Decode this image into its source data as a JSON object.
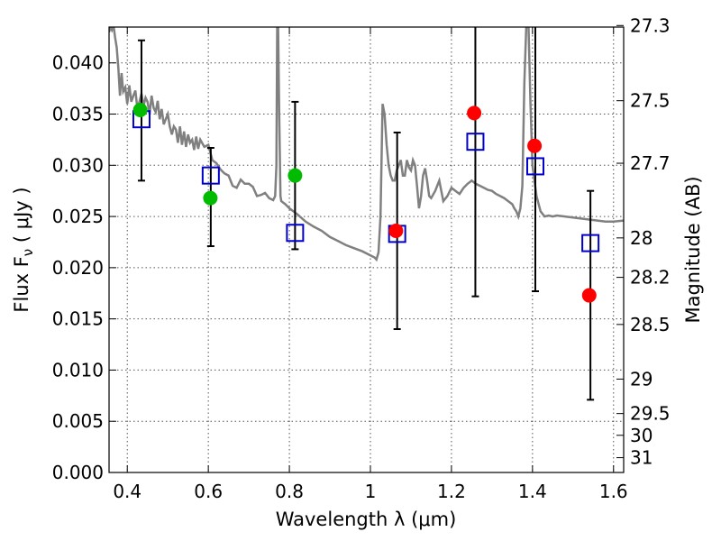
{
  "chart_data": {
    "type": "scatter",
    "xlabel": "Wavelength  λ (μm)",
    "ylabel": "Flux  F",
    "ylabel_sub": "ν",
    "ylabel_unit": "  ( μJy )",
    "y2label": "Magnitude (AB)",
    "xlim": [
      0.355,
      1.625
    ],
    "ylim": [
      0.0,
      0.0435
    ],
    "grid": true,
    "x_ticks": [
      0.4,
      0.6,
      0.8,
      1.0,
      1.2,
      1.4,
      1.6
    ],
    "x_tick_labels": [
      "0.4",
      "0.6",
      "0.8",
      "1",
      "1.2",
      "1.4",
      "1.6"
    ],
    "y_ticks": [
      0.0,
      0.005,
      0.01,
      0.015,
      0.02,
      0.025,
      0.03,
      0.035,
      0.04
    ],
    "y_tick_labels": [
      "0.000",
      "0.005",
      "0.010",
      "0.015",
      "0.020",
      "0.025",
      "0.030",
      "0.035",
      "0.040"
    ],
    "mag_ticks": [
      27.3,
      27.5,
      27.7,
      28,
      28.2,
      28.5,
      29,
      29.5,
      30,
      31
    ],
    "mag_tick_labels": [
      "27.3",
      "27.5",
      "27.7",
      "28",
      "28.2",
      "28.5",
      "29",
      "29.5",
      "30",
      "31"
    ],
    "colors": {
      "spectrum": "#808080",
      "green": "#00bb00",
      "red": "#ff0000",
      "model": "#0000cc",
      "errorbar": "#000000",
      "grid": "#555555"
    },
    "spectrum": {
      "x": [
        0.355,
        0.358,
        0.362,
        0.366,
        0.37,
        0.374,
        0.378,
        0.382,
        0.386,
        0.39,
        0.395,
        0.4,
        0.405,
        0.41,
        0.415,
        0.42,
        0.425,
        0.43,
        0.435,
        0.44,
        0.445,
        0.45,
        0.455,
        0.46,
        0.465,
        0.47,
        0.475,
        0.48,
        0.485,
        0.49,
        0.495,
        0.5,
        0.505,
        0.51,
        0.515,
        0.52,
        0.525,
        0.53,
        0.535,
        0.54,
        0.545,
        0.55,
        0.555,
        0.56,
        0.565,
        0.57,
        0.575,
        0.58,
        0.59,
        0.6,
        0.61,
        0.62,
        0.63,
        0.64,
        0.65,
        0.66,
        0.67,
        0.68,
        0.69,
        0.7,
        0.71,
        0.72,
        0.73,
        0.74,
        0.75,
        0.76,
        0.765,
        0.768,
        0.77,
        0.772,
        0.775,
        0.778,
        0.78,
        0.79,
        0.8,
        0.82,
        0.84,
        0.86,
        0.88,
        0.9,
        0.92,
        0.94,
        0.96,
        0.98,
        1.0,
        1.01,
        1.015,
        1.02,
        1.025,
        1.03,
        1.035,
        1.04,
        1.045,
        1.05,
        1.055,
        1.06,
        1.065,
        1.07,
        1.075,
        1.08,
        1.085,
        1.09,
        1.095,
        1.1,
        1.105,
        1.11,
        1.115,
        1.12,
        1.125,
        1.13,
        1.135,
        1.14,
        1.145,
        1.15,
        1.16,
        1.17,
        1.18,
        1.19,
        1.2,
        1.21,
        1.22,
        1.23,
        1.24,
        1.25,
        1.26,
        1.27,
        1.28,
        1.29,
        1.3,
        1.31,
        1.32,
        1.33,
        1.34,
        1.35,
        1.355,
        1.36,
        1.365,
        1.37,
        1.375,
        1.38,
        1.385,
        1.39,
        1.395,
        1.4,
        1.41,
        1.42,
        1.43,
        1.44,
        1.45,
        1.46,
        1.48,
        1.5,
        1.52,
        1.54,
        1.56,
        1.58,
        1.6,
        1.625
      ],
      "y": [
        0.043,
        0.0435,
        0.0432,
        0.0437,
        0.0425,
        0.0415,
        0.0395,
        0.0368,
        0.039,
        0.0372,
        0.0376,
        0.036,
        0.0378,
        0.0362,
        0.0368,
        0.0373,
        0.0355,
        0.0362,
        0.037,
        0.0358,
        0.0366,
        0.0362,
        0.035,
        0.0368,
        0.0356,
        0.0352,
        0.0363,
        0.0345,
        0.0355,
        0.034,
        0.0345,
        0.035,
        0.0338,
        0.033,
        0.0338,
        0.0335,
        0.0322,
        0.0338,
        0.032,
        0.0333,
        0.0318,
        0.033,
        0.0322,
        0.0325,
        0.0315,
        0.0328,
        0.0316,
        0.0325,
        0.0318,
        0.032,
        0.0305,
        0.0302,
        0.0296,
        0.0292,
        0.029,
        0.028,
        0.0278,
        0.0286,
        0.0282,
        0.0282,
        0.0279,
        0.027,
        0.0271,
        0.0273,
        0.0268,
        0.0266,
        0.027,
        0.03,
        0.044,
        0.044,
        0.035,
        0.027,
        0.0265,
        0.0262,
        0.0258,
        0.0252,
        0.0245,
        0.024,
        0.0236,
        0.023,
        0.0226,
        0.0222,
        0.0219,
        0.0216,
        0.0212,
        0.021,
        0.0208,
        0.0215,
        0.025,
        0.036,
        0.035,
        0.032,
        0.03,
        0.029,
        0.0285,
        0.0285,
        0.0295,
        0.03,
        0.0305,
        0.029,
        0.029,
        0.0305,
        0.0298,
        0.0295,
        0.0305,
        0.03,
        0.028,
        0.0258,
        0.027,
        0.029,
        0.0297,
        0.0285,
        0.027,
        0.0268,
        0.0275,
        0.0285,
        0.0265,
        0.027,
        0.0278,
        0.0275,
        0.0272,
        0.0278,
        0.0282,
        0.0285,
        0.0282,
        0.028,
        0.0278,
        0.0276,
        0.0275,
        0.0272,
        0.027,
        0.0268,
        0.0265,
        0.0262,
        0.0258,
        0.0255,
        0.025,
        0.0258,
        0.028,
        0.038,
        0.044,
        0.044,
        0.036,
        0.03,
        0.027,
        0.0255,
        0.025,
        0.0251,
        0.025,
        0.0251,
        0.025,
        0.0249,
        0.0248,
        0.0247,
        0.0246,
        0.0245,
        0.0245,
        0.0246
      ]
    },
    "observations": [
      {
        "x": 0.432,
        "y": 0.0354,
        "color": "green"
      },
      {
        "x": 0.605,
        "y": 0.0268,
        "color": "green"
      },
      {
        "x": 0.814,
        "y": 0.029,
        "color": "green"
      },
      {
        "x": 1.063,
        "y": 0.0236,
        "color": "red"
      },
      {
        "x": 1.256,
        "y": 0.0351,
        "color": "red"
      },
      {
        "x": 1.405,
        "y": 0.0319,
        "color": "red"
      },
      {
        "x": 1.54,
        "y": 0.0173,
        "color": "red"
      }
    ],
    "model_points": [
      {
        "x": 0.435,
        "y": 0.0345,
        "err_low": 0.0285,
        "err_high": 0.0422
      },
      {
        "x": 0.606,
        "y": 0.029,
        "err_low": 0.0221,
        "err_high": 0.0317
      },
      {
        "x": 0.814,
        "y": 0.0234,
        "err_low": 0.0218,
        "err_high": 0.0362
      },
      {
        "x": 1.066,
        "y": 0.0233,
        "err_low": 0.014,
        "err_high": 0.0332
      },
      {
        "x": 1.259,
        "y": 0.0323,
        "err_low": 0.0172,
        "err_high": 0.044
      },
      {
        "x": 1.407,
        "y": 0.0299,
        "err_low": 0.0177,
        "err_high": 0.044
      },
      {
        "x": 1.543,
        "y": 0.0224,
        "err_low": 0.0071,
        "err_high": 0.0275
      }
    ]
  }
}
